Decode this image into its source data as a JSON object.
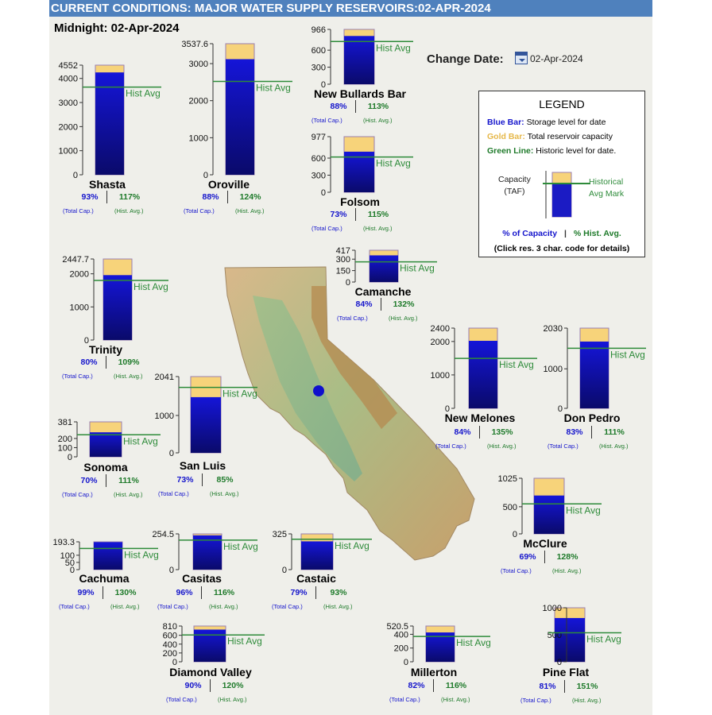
{
  "header": {
    "title": "CURRENT CONDITIONS: MAJOR WATER SUPPLY RESERVOIRS:02-APR-2024"
  },
  "midnight_label": "Midnight: 02-Apr-2024",
  "change_date": {
    "label": "Change Date:",
    "value": "02-Apr-2024",
    "icon": "calendar-icon"
  },
  "legend": {
    "title": "LEGEND",
    "blue_key": "Blue Bar:",
    "blue_text": "Storage level for date",
    "gold_key": "Gold Bar:",
    "gold_text": "Total reservoir capacity",
    "green_key": "Green Line:",
    "green_text": "Historic level for date.",
    "capacity_label": "Capacity",
    "capacity_unit": "(TAF)",
    "hist_mark": "Historical",
    "hist_mark2": "Avg Mark",
    "pct_capacity": "% of Capacity",
    "separator": "|",
    "pct_hist": "% Hist. Avg.",
    "click_note": "(Click res. 3 char. code for details)"
  },
  "labels": {
    "hist_avg": "Hist Avg",
    "total_cap": "(Total Cap.)",
    "hist_avg_sub": "(Hist. Avg.)"
  },
  "colors": {
    "storage": "#0a0ad8",
    "capacity": "#f7d37a",
    "historic": "#2e8b3a",
    "header": "#4f81bd",
    "marker": "#1010cc"
  },
  "map_marker": "blue-dot",
  "chart_data": {
    "type": "bar",
    "units": "TAF",
    "reservoirs": [
      {
        "name": "Shasta",
        "capacity": 4552,
        "ticks": [
          "4552",
          "4000",
          "3000",
          "2000",
          "1000",
          "0"
        ],
        "tick_values": [
          4552,
          4000,
          3000,
          2000,
          1000,
          0
        ],
        "storage": 4250,
        "hist_avg": 3640,
        "pct_capacity": "93%",
        "pct_hist": "117%"
      },
      {
        "name": "Oroville",
        "capacity": 3537.6,
        "ticks": [
          "3537.6",
          "3000",
          "2000",
          "1000",
          "0"
        ],
        "tick_values": [
          3537.6,
          3000,
          2000,
          1000,
          0
        ],
        "storage": 3120,
        "hist_avg": 2520,
        "pct_capacity": "88%",
        "pct_hist": "124%"
      },
      {
        "name": "New Bullards Bar",
        "capacity": 966,
        "ticks": [
          "966",
          "600",
          "300",
          "0"
        ],
        "tick_values": [
          966,
          600,
          300,
          0
        ],
        "storage": 850,
        "hist_avg": 752,
        "pct_capacity": "88%",
        "pct_hist": "113%"
      },
      {
        "name": "Folsom",
        "capacity": 977,
        "ticks": [
          "977",
          "600",
          "300",
          "0"
        ],
        "tick_values": [
          977,
          600,
          300,
          0
        ],
        "storage": 713,
        "hist_avg": 620,
        "pct_capacity": "73%",
        "pct_hist": "115%"
      },
      {
        "name": "Trinity",
        "capacity": 2447.7,
        "ticks": [
          "2447.7",
          "2000",
          "1000",
          "0"
        ],
        "tick_values": [
          2447.7,
          2000,
          1000,
          0
        ],
        "storage": 1960,
        "hist_avg": 1800,
        "pct_capacity": "80%",
        "pct_hist": "109%"
      },
      {
        "name": "Camanche",
        "capacity": 417,
        "ticks": [
          "417",
          "300",
          "150",
          "0"
        ],
        "tick_values": [
          417,
          300,
          150,
          0
        ],
        "storage": 350,
        "hist_avg": 265,
        "pct_capacity": "84%",
        "pct_hist": "132%"
      },
      {
        "name": "New Melones",
        "capacity": 2400,
        "ticks": [
          "2400",
          "2000",
          "1000",
          "0"
        ],
        "tick_values": [
          2400,
          2000,
          1000,
          0
        ],
        "storage": 2020,
        "hist_avg": 1495,
        "pct_capacity": "84%",
        "pct_hist": "135%"
      },
      {
        "name": "Don Pedro",
        "capacity": 2030,
        "ticks": [
          "2030",
          "1000",
          "0"
        ],
        "tick_values": [
          2030,
          1000,
          0
        ],
        "storage": 1690,
        "hist_avg": 1520,
        "pct_capacity": "83%",
        "pct_hist": "111%"
      },
      {
        "name": "Sonoma",
        "capacity": 381,
        "ticks": [
          "381",
          "200",
          "100",
          "0"
        ],
        "tick_values": [
          381,
          200,
          100,
          0
        ],
        "storage": 267,
        "hist_avg": 240,
        "pct_capacity": "70%",
        "pct_hist": "111%"
      },
      {
        "name": "San Luis",
        "capacity": 2041,
        "ticks": [
          "2041",
          "1000",
          "0"
        ],
        "tick_values": [
          2041,
          1000,
          0
        ],
        "storage": 1490,
        "hist_avg": 1750,
        "pct_capacity": "73%",
        "pct_hist": "85%"
      },
      {
        "name": "McClure",
        "capacity": 1025,
        "ticks": [
          "1025",
          "500",
          "0"
        ],
        "tick_values": [
          1025,
          500,
          0
        ],
        "storage": 707,
        "hist_avg": 552,
        "pct_capacity": "69%",
        "pct_hist": "128%"
      },
      {
        "name": "Cachuma",
        "capacity": 193.3,
        "ticks": [
          "193.3",
          "100",
          "50",
          "0"
        ],
        "tick_values": [
          193.3,
          100,
          50,
          0
        ],
        "storage": 191,
        "hist_avg": 147,
        "pct_capacity": "99%",
        "pct_hist": "130%"
      },
      {
        "name": "Casitas",
        "capacity": 254.5,
        "ticks": [
          "254.5",
          "0"
        ],
        "tick_values": [
          254.5,
          0
        ],
        "storage": 244,
        "hist_avg": 210,
        "pct_capacity": "96%",
        "pct_hist": "116%"
      },
      {
        "name": "Castaic",
        "capacity": 325,
        "ticks": [
          "325",
          "0"
        ],
        "tick_values": [
          325,
          0
        ],
        "storage": 257,
        "hist_avg": 276,
        "pct_capacity": "79%",
        "pct_hist": "93%"
      },
      {
        "name": "Diamond Valley",
        "capacity": 810,
        "ticks": [
          "810",
          "600",
          "400",
          "200",
          "0"
        ],
        "tick_values": [
          810,
          600,
          400,
          200,
          0
        ],
        "storage": 729,
        "hist_avg": 608,
        "pct_capacity": "90%",
        "pct_hist": "120%"
      },
      {
        "name": "Millerton",
        "capacity": 520.5,
        "ticks": [
          "520.5",
          "400",
          "200",
          "0"
        ],
        "tick_values": [
          520.5,
          400,
          200,
          0
        ],
        "storage": 427,
        "hist_avg": 368,
        "pct_capacity": "82%",
        "pct_hist": "116%"
      },
      {
        "name": "Pine Flat",
        "capacity": 1000,
        "ticks": [
          "1000",
          "500",
          "0"
        ],
        "tick_values": [
          1000,
          500,
          0
        ],
        "storage": 810,
        "hist_avg": 536,
        "pct_capacity": "81%",
        "pct_hist": "151%"
      }
    ]
  }
}
